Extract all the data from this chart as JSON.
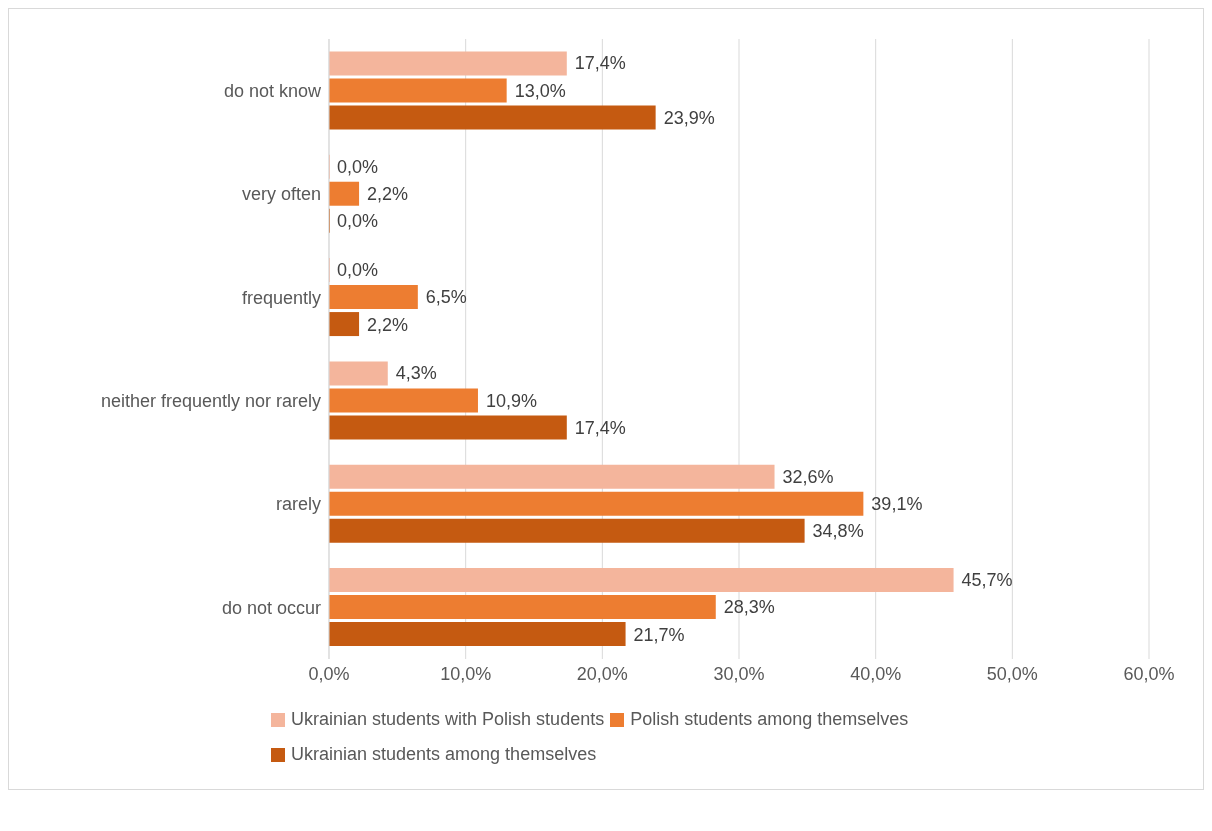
{
  "chart_data": {
    "type": "bar",
    "orientation": "horizontal",
    "categories": [
      "do not know",
      "very often",
      "frequently",
      "neither frequently nor rarely",
      "rarely",
      "do not occur"
    ],
    "series": [
      {
        "name": "Ukrainian students with Polish students",
        "color": "#f4b59c",
        "values": [
          17.4,
          0,
          0,
          4.3,
          32.6,
          45.7
        ],
        "value_labels": [
          "17,4%",
          "0,0%",
          "0,0%",
          "4,3%",
          "32,6%",
          "45,7%"
        ]
      },
      {
        "name": "Polish students among themselves",
        "color": "#ed7d31",
        "values": [
          13.0,
          2.2,
          6.5,
          10.9,
          39.1,
          28.3
        ],
        "value_labels": [
          "13,0%",
          "2,2%",
          "6,5%",
          "10,9%",
          "39,1%",
          "28,3%"
        ]
      },
      {
        "name": "Ukrainian students among themselves",
        "color": "#c55a11",
        "values": [
          23.9,
          0,
          2.2,
          17.4,
          34.8,
          21.7
        ],
        "value_labels": [
          "23,9%",
          "0,0%",
          "2,2%",
          "17,4%",
          "34,8%",
          "21,7%"
        ]
      }
    ],
    "xlim": [
      0,
      60
    ],
    "xticks": [
      {
        "value": 0,
        "label": "0,0%"
      },
      {
        "value": 10,
        "label": "10,0%"
      },
      {
        "value": 20,
        "label": "20,0%"
      },
      {
        "value": 30,
        "label": "30,0%"
      },
      {
        "value": 40,
        "label": "40,0%"
      },
      {
        "value": 50,
        "label": "50,0%"
      },
      {
        "value": 60,
        "label": "60,0%"
      }
    ],
    "grid": "x",
    "legend": "bottom"
  }
}
